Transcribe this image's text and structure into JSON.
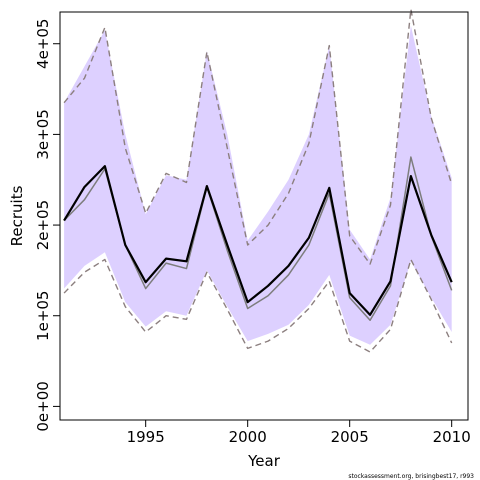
{
  "chart_data": {
    "type": "line",
    "xlabel": "Year",
    "ylabel": "Recruits",
    "xlim": [
      1990.8,
      2010.8
    ],
    "ylim": [
      -15000,
      435000
    ],
    "x_ticks": [
      1995,
      2000,
      2005,
      2010
    ],
    "y_ticks": [
      {
        "value": 0,
        "label": "0e+00"
      },
      {
        "value": 100000,
        "label": "1e+05"
      },
      {
        "value": 200000,
        "label": "2e+05"
      },
      {
        "value": 300000,
        "label": "3e+05"
      },
      {
        "value": 400000,
        "label": "4e+05"
      }
    ],
    "x": [
      1991,
      1992,
      1993,
      1994,
      1995,
      1996,
      1997,
      1998,
      1999,
      2000,
      2001,
      2002,
      2003,
      2004,
      2005,
      2006,
      2007,
      2008,
      2009,
      2010
    ],
    "series": [
      {
        "role": "band",
        "color": "#ddd0ff",
        "lower": [
          130000,
          155000,
          170000,
          115000,
          88000,
          105000,
          100000,
          150000,
          110000,
          72000,
          80000,
          90000,
          112000,
          145000,
          78000,
          68000,
          90000,
          160000,
          120000,
          82000
        ],
        "upper": [
          335000,
          375000,
          415000,
          300000,
          212000,
          255000,
          250000,
          392000,
          300000,
          183000,
          215000,
          250000,
          300000,
          398000,
          195000,
          162000,
          230000,
          420000,
          320000,
          252000
        ]
      },
      {
        "role": "dashed-upper",
        "color": "#8c7f7f",
        "values": [
          335000,
          362000,
          418000,
          285000,
          213000,
          257000,
          247000,
          391000,
          285000,
          178000,
          200000,
          235000,
          290000,
          398000,
          188000,
          157000,
          222000,
          438000,
          318000,
          245000
        ]
      },
      {
        "role": "dashed-lower",
        "color": "#8c7f7f",
        "values": [
          125000,
          148000,
          162000,
          110000,
          82000,
          100000,
          96000,
          148000,
          107000,
          64000,
          72000,
          86000,
          108000,
          138000,
          72000,
          60000,
          85000,
          162000,
          118000,
          70000
        ]
      },
      {
        "role": "grey-line",
        "color": "#7d7d7d",
        "values": [
          205000,
          228000,
          262000,
          178000,
          130000,
          158000,
          152000,
          242000,
          172000,
          108000,
          122000,
          145000,
          178000,
          235000,
          120000,
          95000,
          133000,
          275000,
          188000,
          128000
        ]
      },
      {
        "role": "black-line",
        "color": "#000000",
        "values": [
          205000,
          242000,
          265000,
          178000,
          137000,
          163000,
          160000,
          243000,
          178000,
          115000,
          133000,
          155000,
          186000,
          241000,
          125000,
          101000,
          138000,
          254000,
          189000,
          137000
        ]
      }
    ]
  },
  "footnote": "stockassessment.org, brisingbest17, r993"
}
